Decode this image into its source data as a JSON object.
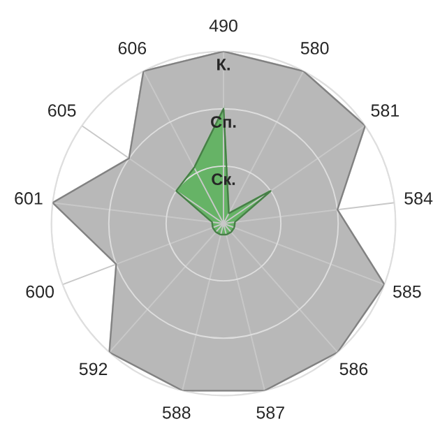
{
  "chart_data": {
    "type": "radar",
    "categories": [
      "490",
      "580",
      "581",
      "584",
      "585",
      "586",
      "587",
      "588",
      "592",
      "600",
      "601",
      "605",
      "606"
    ],
    "ylim": [
      0,
      3
    ],
    "yticks": [
      {
        "value": 1,
        "label": "Ск."
      },
      {
        "value": 2,
        "label": "Сп."
      },
      {
        "value": 3,
        "label": "К."
      }
    ],
    "grid": true,
    "series": [
      {
        "color": "#b8b8b8",
        "values": [
          3,
          3,
          3,
          2,
          3,
          3,
          3,
          3,
          3,
          2,
          3,
          2,
          3
        ]
      },
      {
        "color": "#66b366",
        "values": [
          2,
          0.2,
          1,
          0.2,
          0.2,
          0.2,
          0.2,
          0.2,
          0.2,
          0.2,
          0.2,
          1,
          1.1
        ]
      }
    ]
  }
}
